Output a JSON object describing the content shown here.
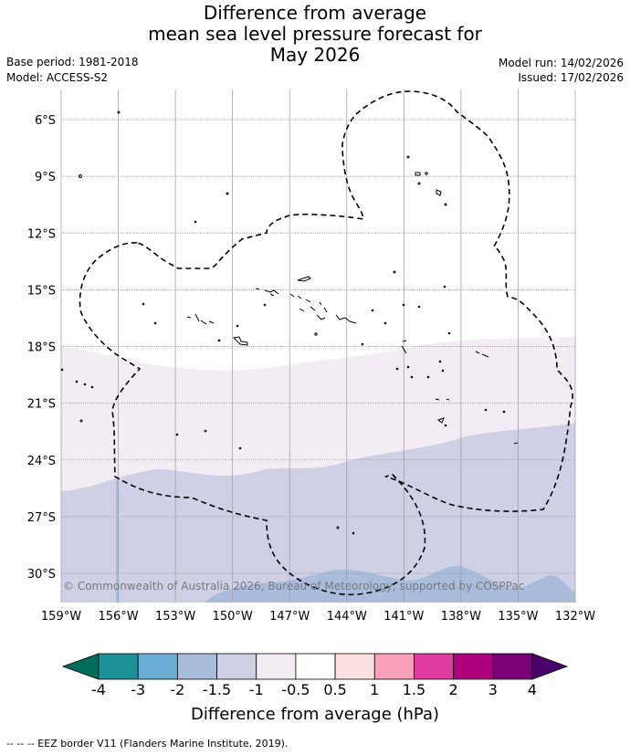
{
  "title": {
    "line1": "Difference from average",
    "line2": "mean sea level pressure forecast for",
    "line3": "May 2026"
  },
  "info": {
    "base_period": "Base period: 1981-2018",
    "model": "Model: ACCESS-S2",
    "model_run": "Model run: 14/02/2026",
    "issued": "Issued: 17/02/2026"
  },
  "map": {
    "latitude_labels": [
      "6°S",
      "9°S",
      "12°S",
      "15°S",
      "18°S",
      "21°S",
      "24°S",
      "27°S",
      "30°S"
    ],
    "latitude_values": [
      -6,
      -9,
      -12,
      -15,
      -18,
      -21,
      -24,
      -27,
      -30
    ],
    "longitude_labels": [
      "159°W",
      "156°W",
      "153°W",
      "150°W",
      "147°W",
      "144°W",
      "141°W",
      "138°W",
      "135°W",
      "132°W"
    ],
    "longitude_values": [
      -159,
      -156,
      -153,
      -150,
      -147,
      -144,
      -141,
      -138,
      -135,
      -132
    ],
    "lat_range": [
      -31.5,
      -4.5
    ],
    "lon_range": [
      -159,
      -132
    ],
    "copyright": "© Commonwealth of Australia 2026, Bureau of Meteorology, supported by COSPPac"
  },
  "colorbar": {
    "labels": [
      "-4",
      "-3",
      "-2",
      "-1.5",
      "-1",
      "-0.5",
      "0.5",
      "1",
      "1.5",
      "2",
      "3",
      "4"
    ],
    "colors": [
      "#1e9098",
      "#6aaed6",
      "#a9bcdc",
      "#cfd0e6",
      "#f3ecf5",
      "#ffffff",
      "#fde0e0",
      "#f9a0bb",
      "#df3aa0",
      "#ae017e",
      "#7a0177"
    ],
    "under_color": "#016c59",
    "over_color": "#49006a",
    "label": "Difference from average (hPa)"
  },
  "footer": "-- -- -- EEZ border V11 (Flanders Marine Institute, 2019)."
}
